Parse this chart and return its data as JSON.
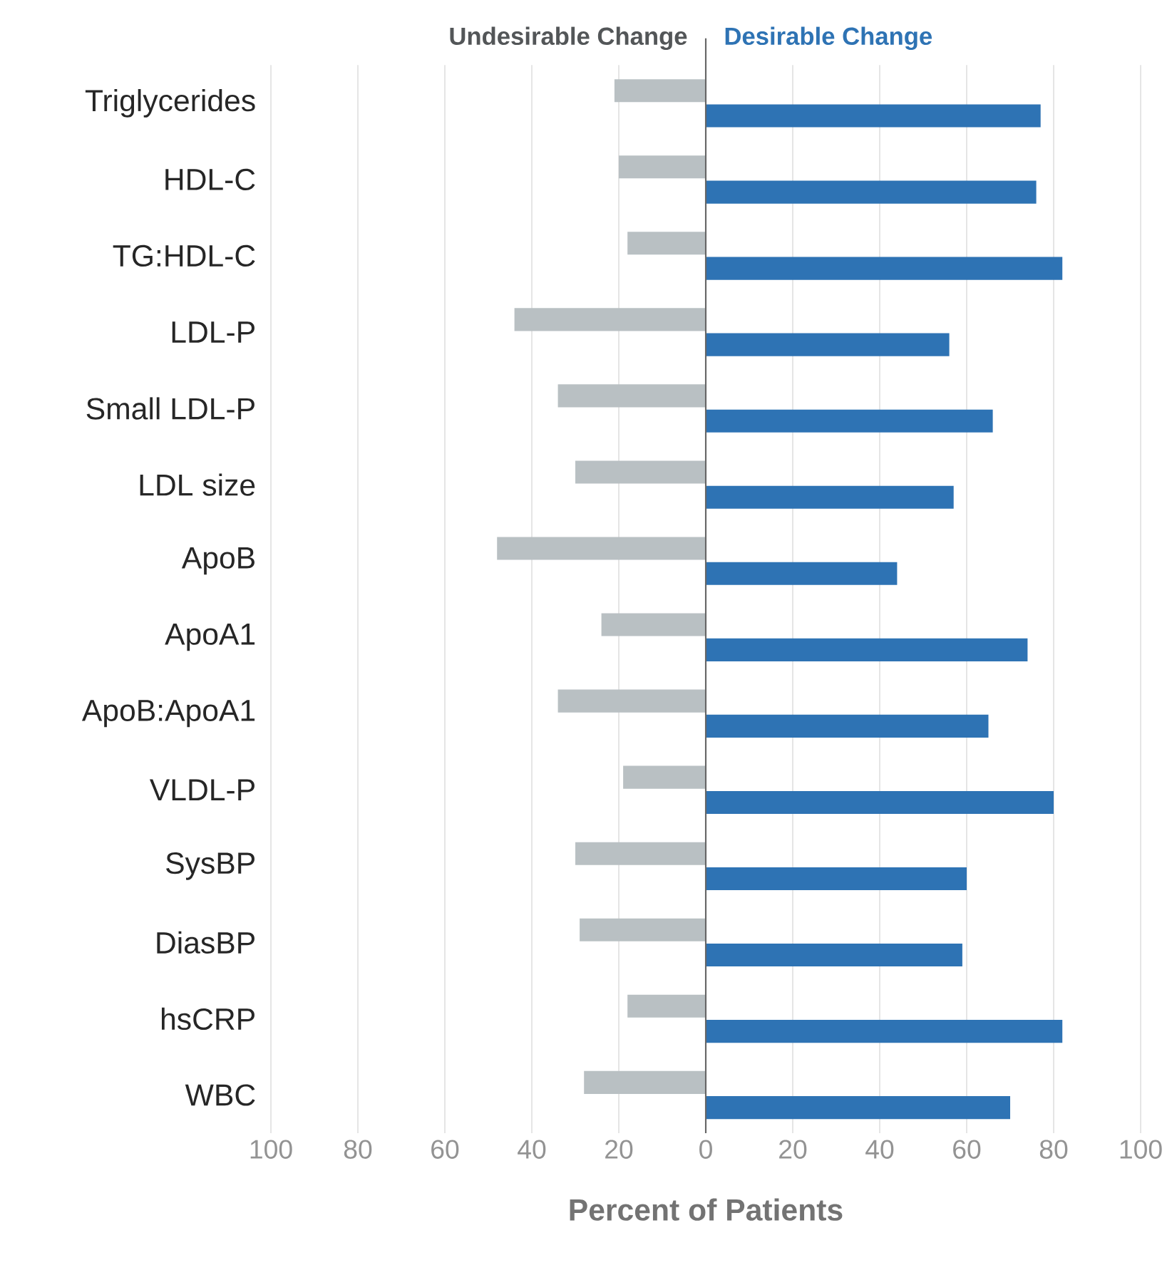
{
  "chart_data": {
    "type": "bar",
    "orientation": "horizontal",
    "xlabel": "Percent of Patients",
    "categories": [
      "Triglycerides",
      "HDL-C",
      "TG:HDL-C",
      "LDL-P",
      "Small LDL-P",
      "LDL size",
      "ApoB",
      "ApoA1",
      "ApoB:ApoA1",
      "VLDL-P",
      "SysBP",
      "DiasBP",
      "hsCRP",
      "WBC"
    ],
    "series": [
      {
        "name": "Undesirable Change",
        "color": "#b9c0c3",
        "values": [
          -21,
          -20,
          -18,
          -44,
          -34,
          -30,
          -48,
          -24,
          -34,
          -19,
          -30,
          -29,
          -18,
          -28
        ]
      },
      {
        "name": "Desirable Change",
        "color": "#2e73b4",
        "values": [
          77,
          76,
          82,
          56,
          66,
          57,
          44,
          74,
          65,
          80,
          60,
          59,
          82,
          70
        ]
      }
    ],
    "xlim": [
      -100,
      100
    ],
    "xticks": [
      {
        "value": -100,
        "label": "100"
      },
      {
        "value": -80,
        "label": "80"
      },
      {
        "value": -60,
        "label": "60"
      },
      {
        "value": -40,
        "label": "40"
      },
      {
        "value": -20,
        "label": "20"
      },
      0,
      20,
      40,
      60,
      80,
      100
    ],
    "grid": "x",
    "legend": "top"
  }
}
